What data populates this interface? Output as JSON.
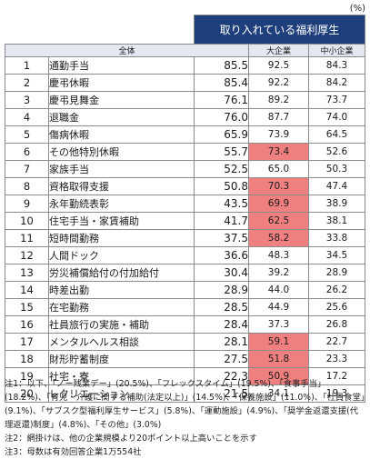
{
  "unit_label": "(%)",
  "table": {
    "title": "取り入れている福利厚生",
    "headers": {
      "all": "全体",
      "large": "大企業",
      "small": "中小企業"
    },
    "rows": [
      {
        "num": "1",
        "label": "通勤手当",
        "all": "85.5",
        "large": "92.5",
        "small": "84.3",
        "highlight": false
      },
      {
        "num": "2",
        "label": "慶弔休暇",
        "all": "85.4",
        "large": "92.2",
        "small": "84.2",
        "highlight": false
      },
      {
        "num": "3",
        "label": "慶弔見舞金",
        "all": "76.1",
        "large": "89.2",
        "small": "73.7",
        "highlight": false
      },
      {
        "num": "4",
        "label": "退職金",
        "all": "76.0",
        "large": "87.7",
        "small": "74.0",
        "highlight": false
      },
      {
        "num": "5",
        "label": "傷病休暇",
        "all": "65.9",
        "large": "73.9",
        "small": "64.5",
        "highlight": false
      },
      {
        "num": "6",
        "label": "その他特別休暇",
        "all": "55.7",
        "large": "73.4",
        "small": "52.6",
        "highlight": true
      },
      {
        "num": "7",
        "label": "家族手当",
        "all": "52.5",
        "large": "65.0",
        "small": "50.3",
        "highlight": false
      },
      {
        "num": "8",
        "label": "資格取得支援",
        "all": "50.8",
        "large": "70.3",
        "small": "47.4",
        "highlight": true
      },
      {
        "num": "9",
        "label": "永年勤続表彰",
        "all": "43.5",
        "large": "69.9",
        "small": "38.9",
        "highlight": true
      },
      {
        "num": "10",
        "label": "住宅手当・家賃補助",
        "all": "41.7",
        "large": "62.5",
        "small": "38.1",
        "highlight": true
      },
      {
        "num": "11",
        "label": "短時間勤務",
        "all": "37.5",
        "large": "58.2",
        "small": "33.8",
        "highlight": true
      },
      {
        "num": "12",
        "label": "人間ドック",
        "all": "36.6",
        "large": "48.3",
        "small": "34.5",
        "highlight": false
      },
      {
        "num": "13",
        "label": "労災補償給付の付加給付",
        "all": "30.4",
        "large": "39.2",
        "small": "28.9",
        "highlight": false
      },
      {
        "num": "14",
        "label": "時差出勤",
        "all": "28.9",
        "large": "44.0",
        "small": "26.2",
        "highlight": false
      },
      {
        "num": "15",
        "label": "在宅勤務",
        "all": "28.5",
        "large": "44.9",
        "small": "25.6",
        "highlight": false
      },
      {
        "num": "16",
        "label": "社員旅行の実施・補助",
        "all": "28.4",
        "large": "37.3",
        "small": "26.8",
        "highlight": false
      },
      {
        "num": "17",
        "label": "メンタルヘルス相談",
        "all": "28.1",
        "large": "59.1",
        "small": "22.7",
        "highlight": true
      },
      {
        "num": "18",
        "label": "財形貯蓄制度",
        "all": "27.5",
        "large": "51.8",
        "small": "23.3",
        "highlight": true
      },
      {
        "num": "19",
        "label": "社宅・寮",
        "all": "22.3",
        "large": "50.9",
        "small": "17.2",
        "highlight": true
      },
      {
        "num": "20",
        "label": "レクリエーション",
        "all": "21.5",
        "large": "34.1",
        "small": "19.3",
        "highlight": false
      }
    ]
  },
  "notes": {
    "note1": "注1：以下、「ノー残業デー」(20.5%)、「フレックスタイム」(19.5%)、「食事手当」(18.2%)、「育児・介護に関する補助(法定以上)」(14.5%)、「保養施設」(11.0%)、「社員食堂」(9.1%)、「サブスク型福利厚生サービス」(5.8%)、「運動施設」(4.9%)、「奨学金返還支援(代理返還)制度」(4.8%)、「その他」(3.0%)",
    "note2": "注2：網掛けは、他の企業規模より20ポイント以上高いことを示す",
    "note3": "注3：母数は有効回答企業1万554社"
  },
  "colors": {
    "title_bg": "#1f3f7c",
    "header_bg": "#e3e8f2",
    "highlight": "#f08080",
    "border": "#8c8c8c"
  }
}
